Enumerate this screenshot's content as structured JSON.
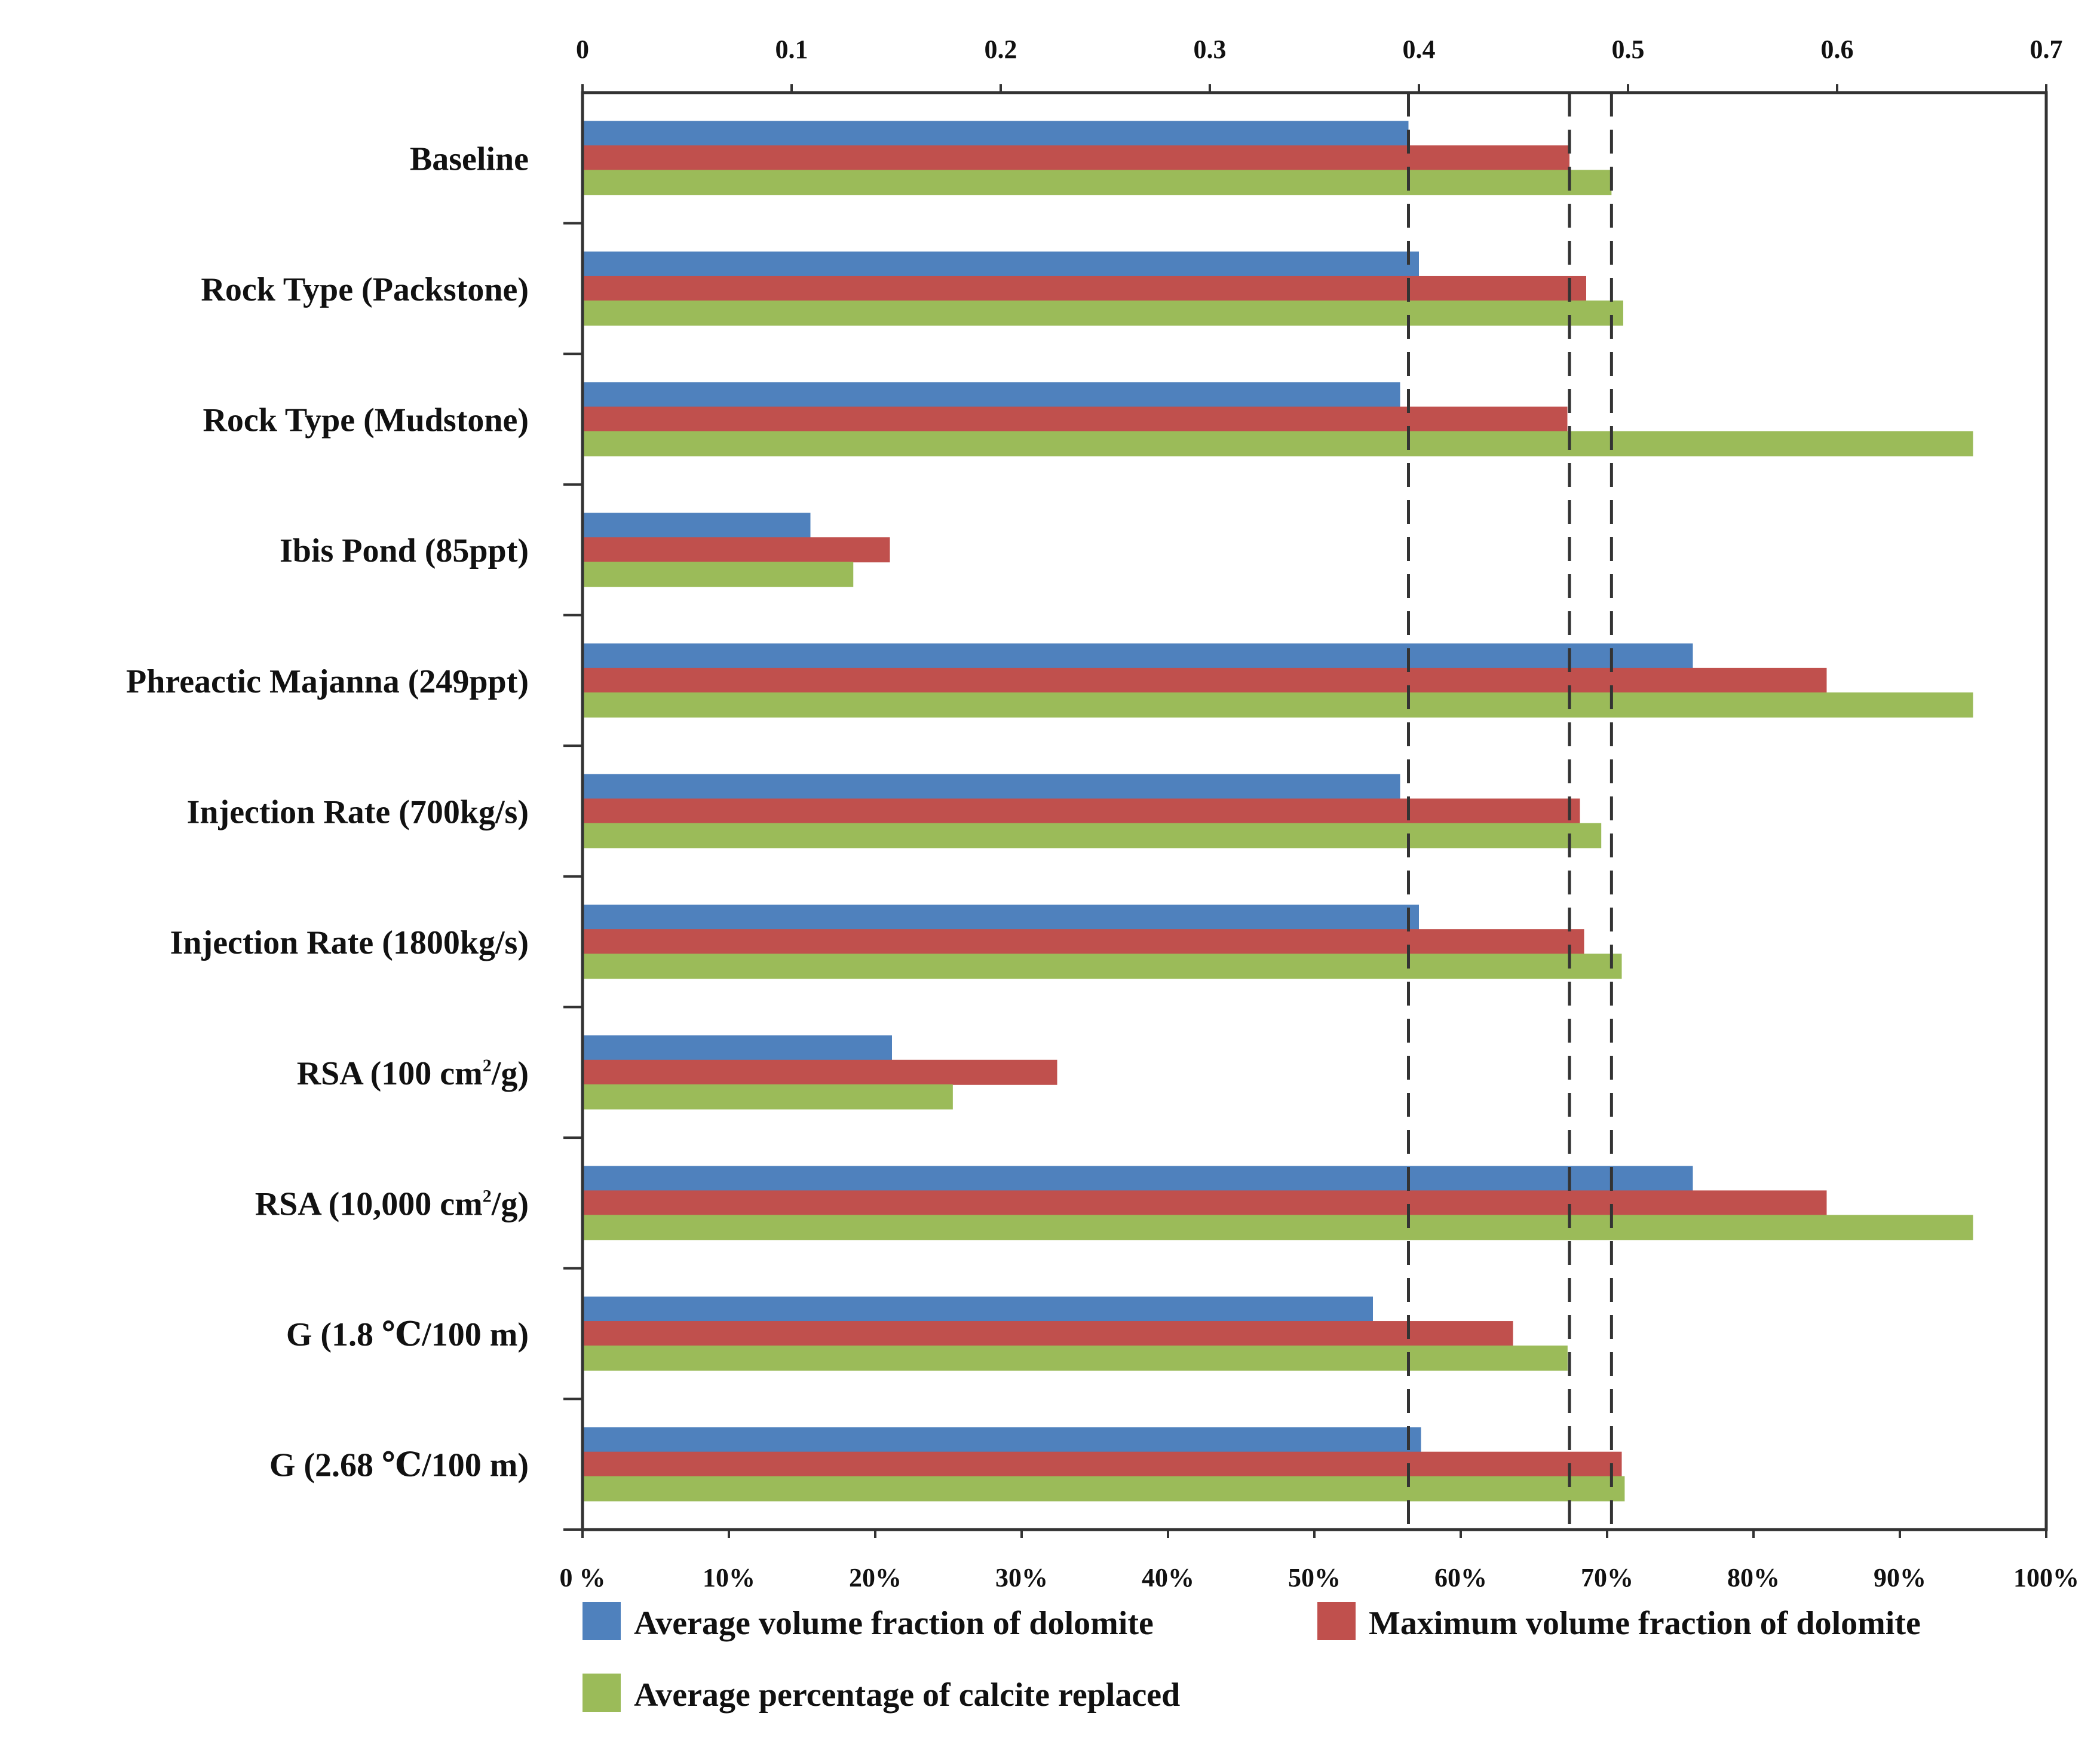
{
  "colors": {
    "series_blue": "#4f81bd",
    "series_red": "#c0504d",
    "series_green": "#9bbb59",
    "axis": "#333333",
    "refline": "#333333"
  },
  "chart_data": {
    "type": "bar",
    "orientation": "horizontal",
    "categories": [
      {
        "pre": "Baseline",
        "sup": "",
        "post": ""
      },
      {
        "pre": "Rock Type (Packstone)",
        "sup": "",
        "post": ""
      },
      {
        "pre": "Rock Type (Mudstone)",
        "sup": "",
        "post": ""
      },
      {
        "pre": "Ibis Pond (85ppt)",
        "sup": "",
        "post": ""
      },
      {
        "pre": "Phreactic Majanna (249ppt)",
        "sup": "",
        "post": ""
      },
      {
        "pre": "Injection Rate (700kg/s)",
        "sup": "",
        "post": ""
      },
      {
        "pre": "Injection Rate (1800kg/s)",
        "sup": "",
        "post": ""
      },
      {
        "pre": "RSA (100 cm",
        "sup": "2",
        "post": "/g)"
      },
      {
        "pre": "RSA (10,000 cm",
        "sup": "2",
        "post": "/g)"
      },
      {
        "pre": "G (1.8 ℃/100 m)",
        "sup": "",
        "post": ""
      },
      {
        "pre": "G (2.68 ℃/100 m)",
        "sup": "",
        "post": ""
      }
    ],
    "series": [
      {
        "name": "Average volume fraction of dolomite",
        "axis": "top",
        "color": "#4f81bd",
        "values": [
          0.395,
          0.4,
          0.391,
          0.109,
          0.531,
          0.391,
          0.4,
          0.148,
          0.531,
          0.378,
          0.401
        ]
      },
      {
        "name": "Maximum volume fraction of dolomite",
        "axis": "top",
        "color": "#c0504d",
        "values": [
          0.472,
          0.48,
          0.471,
          0.147,
          0.595,
          0.477,
          0.479,
          0.227,
          0.595,
          0.445,
          0.497
        ]
      },
      {
        "name": "Average percentage of calcite replaced",
        "axis": "bottom",
        "color": "#9bbb59",
        "values": [
          70.3,
          71.1,
          95.0,
          18.5,
          95.0,
          69.6,
          71.0,
          25.3,
          95.0,
          67.3,
          71.2
        ]
      }
    ],
    "top_axis": {
      "min": 0,
      "max": 0.7,
      "ticks": [
        0,
        0.1,
        0.2,
        0.3,
        0.4,
        0.5,
        0.6,
        0.7
      ],
      "tick_labels": [
        "0",
        "0.1",
        "0.2",
        "0.3",
        "0.4",
        "0.5",
        "0.6",
        "0.7"
      ]
    },
    "bottom_axis": {
      "min": 0,
      "max": 100,
      "ticks": [
        0,
        10,
        20,
        30,
        40,
        50,
        60,
        70,
        80,
        90,
        100
      ],
      "tick_labels": [
        "0 %",
        "10%",
        "20%",
        "30%",
        "40%",
        "50%",
        "60%",
        "70%",
        "80%",
        "90%",
        "100%"
      ]
    },
    "reference_lines": [
      {
        "axis": "top",
        "value": 0.395
      },
      {
        "axis": "top",
        "value": 0.472
      },
      {
        "axis": "bottom",
        "value": 70.3
      }
    ],
    "legend": {
      "placement": "bottom",
      "entries": [
        "Average volume fraction of dolomite",
        "Maximum volume fraction of dolomite",
        "Average percentage of calcite replaced"
      ]
    },
    "grid": false
  }
}
